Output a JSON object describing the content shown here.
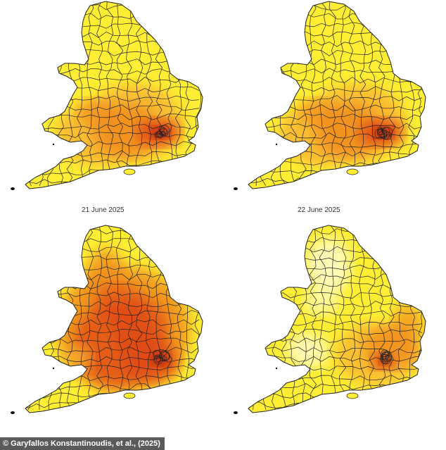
{
  "captions": {
    "first": "21 June 2025",
    "second": "22 June 2025"
  },
  "credit": "© Garyfallos Konstantinoudis, et al., (2025)",
  "maps": [
    {
      "id": "top-left",
      "intensity": 0.55,
      "hot_spot": "london"
    },
    {
      "id": "top-right",
      "intensity": 0.6,
      "hot_spot": "london"
    },
    {
      "id": "bottom-left",
      "intensity": 0.85,
      "hot_spot": "midlands-london"
    },
    {
      "id": "bottom-right",
      "intensity": 0.35,
      "hot_spot": "south-east"
    }
  ],
  "colors": {
    "pale": "#fffbc4",
    "yellow": "#ffee33",
    "light_orange": "#f9b732",
    "orange": "#f08c1e",
    "red": "#e04a14",
    "dark_red": "#b81e0a",
    "border": "#222222"
  }
}
